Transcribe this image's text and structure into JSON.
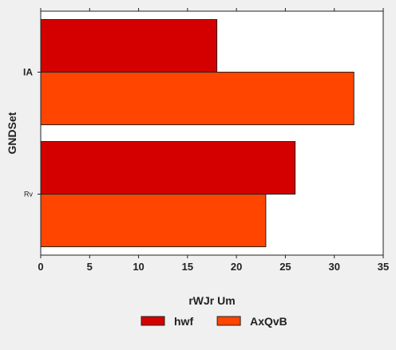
{
  "chart_data": {
    "type": "bar",
    "orientation": "horizontal",
    "categories": [
      "IA",
      "Rv"
    ],
    "series": [
      {
        "name": "hwf",
        "values": [
          18,
          26
        ],
        "color": "#d40000"
      },
      {
        "name": "AxQvB",
        "values": [
          32,
          23
        ],
        "color": "#ff4500"
      }
    ],
    "xlabel": "rWJr Um",
    "ylabel": "GNDSet",
    "xlim": [
      0,
      35
    ],
    "xticks": [
      "0",
      "5",
      "10",
      "15",
      "20",
      "25",
      "30",
      "35"
    ],
    "grid": false,
    "legend_position": "bottom-center",
    "colors": {
      "plot_background": "#ffffff",
      "figure_background": "#f0f0f0",
      "bar_edge": "#222222"
    }
  }
}
